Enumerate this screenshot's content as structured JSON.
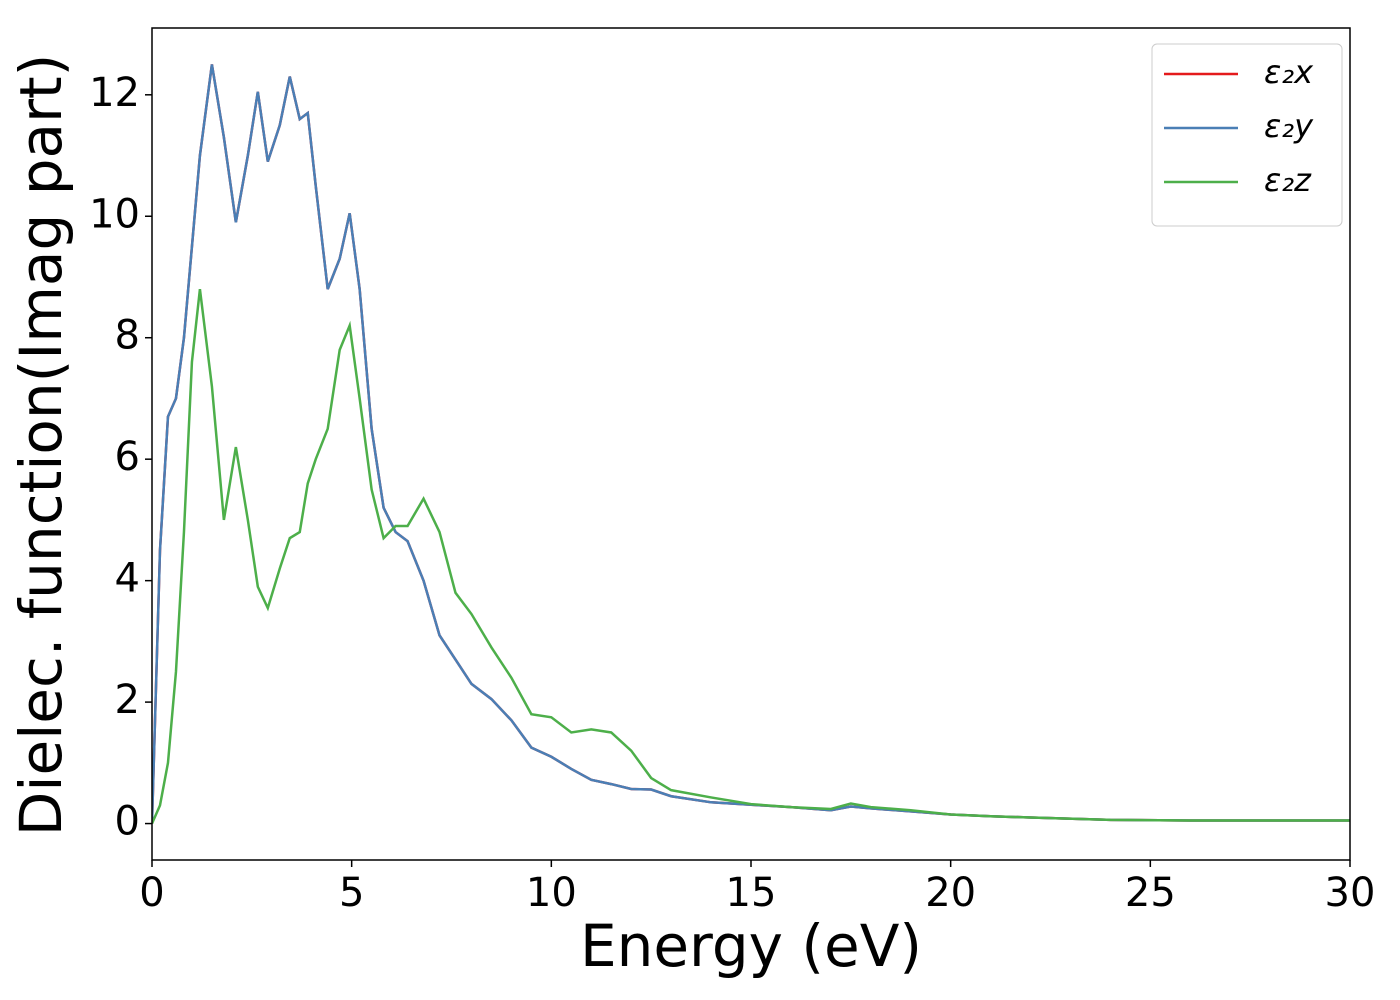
{
  "chart_data": {
    "type": "line",
    "xlabel": "Energy (eV)",
    "ylabel": "Dielec. function(Imag part)",
    "x": [
      0,
      0.2,
      0.4,
      0.6,
      0.8,
      1.0,
      1.2,
      1.5,
      1.8,
      2.1,
      2.4,
      2.65,
      2.9,
      3.2,
      3.45,
      3.7,
      3.9,
      4.1,
      4.4,
      4.7,
      4.95,
      5.2,
      5.5,
      5.8,
      6.1,
      6.4,
      6.8,
      7.2,
      7.6,
      8.0,
      8.5,
      9.0,
      9.5,
      10,
      10.5,
      11,
      11.5,
      12,
      12.5,
      13,
      14,
      15,
      16,
      17,
      17.5,
      18,
      19,
      20,
      21,
      22,
      24,
      26,
      28,
      30
    ],
    "series": [
      {
        "name": "ε₂x",
        "color": "#e41a1c",
        "values": [
          0,
          4.5,
          6.7,
          7.0,
          8.0,
          9.5,
          11.0,
          12.5,
          11.3,
          9.9,
          11.0,
          12.05,
          10.9,
          11.5,
          12.3,
          11.6,
          11.7,
          10.5,
          8.8,
          9.3,
          10.05,
          8.8,
          6.5,
          5.2,
          4.8,
          4.65,
          4.0,
          3.1,
          2.7,
          2.3,
          2.05,
          1.7,
          1.25,
          1.1,
          0.9,
          0.72,
          0.65,
          0.57,
          0.56,
          0.45,
          0.35,
          0.31,
          0.27,
          0.22,
          0.28,
          0.25,
          0.2,
          0.15,
          0.12,
          0.1,
          0.06,
          0.05,
          0.05,
          0.05
        ]
      },
      {
        "name": "ε₂y",
        "color": "#4a7fb5",
        "values": [
          0,
          4.5,
          6.7,
          7.0,
          8.0,
          9.5,
          11.0,
          12.5,
          11.3,
          9.9,
          11.0,
          12.05,
          10.9,
          11.5,
          12.3,
          11.6,
          11.7,
          10.5,
          8.8,
          9.3,
          10.05,
          8.8,
          6.5,
          5.2,
          4.8,
          4.65,
          4.0,
          3.1,
          2.7,
          2.3,
          2.05,
          1.7,
          1.25,
          1.1,
          0.9,
          0.72,
          0.65,
          0.57,
          0.56,
          0.45,
          0.35,
          0.31,
          0.27,
          0.22,
          0.28,
          0.25,
          0.2,
          0.15,
          0.12,
          0.1,
          0.06,
          0.05,
          0.05,
          0.05
        ]
      },
      {
        "name": "ε₂z",
        "color": "#4daf4a",
        "values": [
          0,
          0.3,
          1.0,
          2.5,
          4.8,
          7.6,
          8.8,
          7.2,
          5.0,
          6.2,
          5.0,
          3.9,
          3.55,
          4.2,
          4.7,
          4.8,
          5.6,
          6.0,
          6.5,
          7.8,
          8.2,
          7.0,
          5.5,
          4.7,
          4.9,
          4.9,
          5.35,
          4.8,
          3.8,
          3.45,
          2.9,
          2.4,
          1.8,
          1.75,
          1.5,
          1.55,
          1.5,
          1.2,
          0.75,
          0.55,
          0.43,
          0.32,
          0.27,
          0.24,
          0.33,
          0.27,
          0.22,
          0.15,
          0.12,
          0.1,
          0.06,
          0.05,
          0.05,
          0.05
        ]
      }
    ],
    "xlim": [
      0,
      30
    ],
    "xticks": [
      0,
      5,
      10,
      15,
      20,
      25,
      30
    ],
    "ylim": [
      -0.6,
      13.1
    ],
    "yticks": [
      0,
      2,
      4,
      6,
      8,
      10,
      12
    ],
    "grid": false,
    "legend": "upper right"
  }
}
